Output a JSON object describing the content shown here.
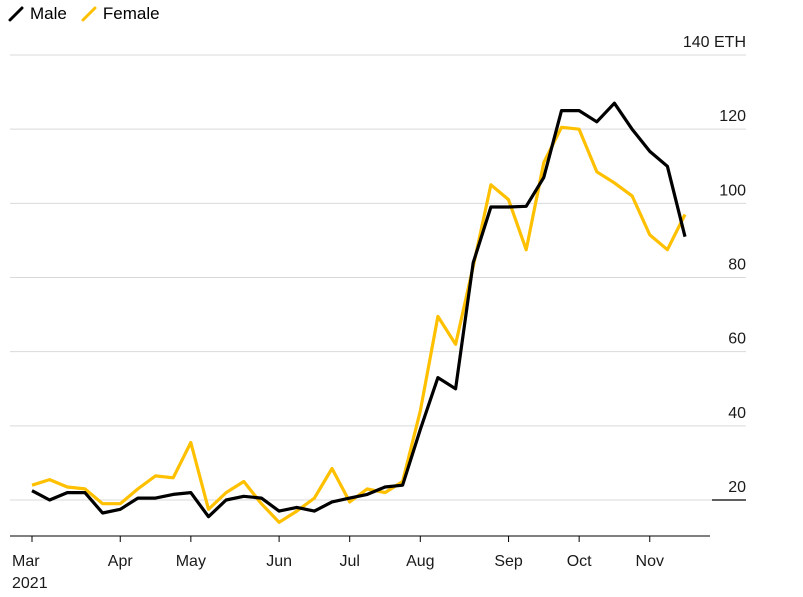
{
  "chart_data": {
    "type": "line",
    "title": "",
    "xlabel": "",
    "ylabel": "",
    "y_unit": "ETH",
    "ylim": [
      10,
      140
    ],
    "yticks": [
      20,
      40,
      60,
      80,
      100,
      120,
      140
    ],
    "ytick_labels": [
      "20",
      "40",
      "60",
      "80",
      "100",
      "120",
      "140 ETH"
    ],
    "grid": true,
    "legend_position": "top-left",
    "xticks": [
      {
        "label": "Mar",
        "sublabel": "2021",
        "week": 0
      },
      {
        "label": "Apr",
        "week": 5
      },
      {
        "label": "May",
        "week": 9
      },
      {
        "label": "Jun",
        "week": 14
      },
      {
        "label": "Jul",
        "week": 18
      },
      {
        "label": "Aug",
        "week": 22
      },
      {
        "label": "Sep",
        "week": 27
      },
      {
        "label": "Oct",
        "week": 31
      },
      {
        "label": "Nov",
        "week": 35
      }
    ],
    "x": [
      0,
      1,
      2,
      3,
      4,
      5,
      6,
      7,
      8,
      9,
      10,
      11,
      12,
      13,
      14,
      15,
      16,
      17,
      18,
      19,
      20,
      21,
      22,
      23,
      24,
      25,
      26,
      27,
      28,
      29,
      30,
      31,
      32,
      33,
      34,
      35,
      36,
      37
    ],
    "series": [
      {
        "name": "Male",
        "color": "#000000",
        "values": [
          22.5,
          20,
          22,
          22,
          16.5,
          17.5,
          20.5,
          20.5,
          21.5,
          22,
          15.5,
          20,
          21,
          20.5,
          17,
          18,
          17,
          19.5,
          20.5,
          21.5,
          23.5,
          24,
          39,
          53,
          50,
          84,
          99,
          99,
          99.2,
          107,
          125,
          125,
          122,
          127,
          120,
          114,
          110,
          91
        ]
      },
      {
        "name": "Female",
        "color": "#FFC000",
        "values": [
          24,
          25.5,
          23.5,
          23,
          19,
          19,
          23,
          26.5,
          26,
          35.5,
          17.5,
          22,
          25,
          19,
          14,
          17,
          20.5,
          28.5,
          19.5,
          23,
          22,
          25,
          44,
          69.5,
          62,
          83,
          105,
          101,
          87.5,
          111,
          120.5,
          120,
          108.5,
          105.5,
          102,
          91.5,
          87.5,
          97
        ]
      }
    ]
  }
}
